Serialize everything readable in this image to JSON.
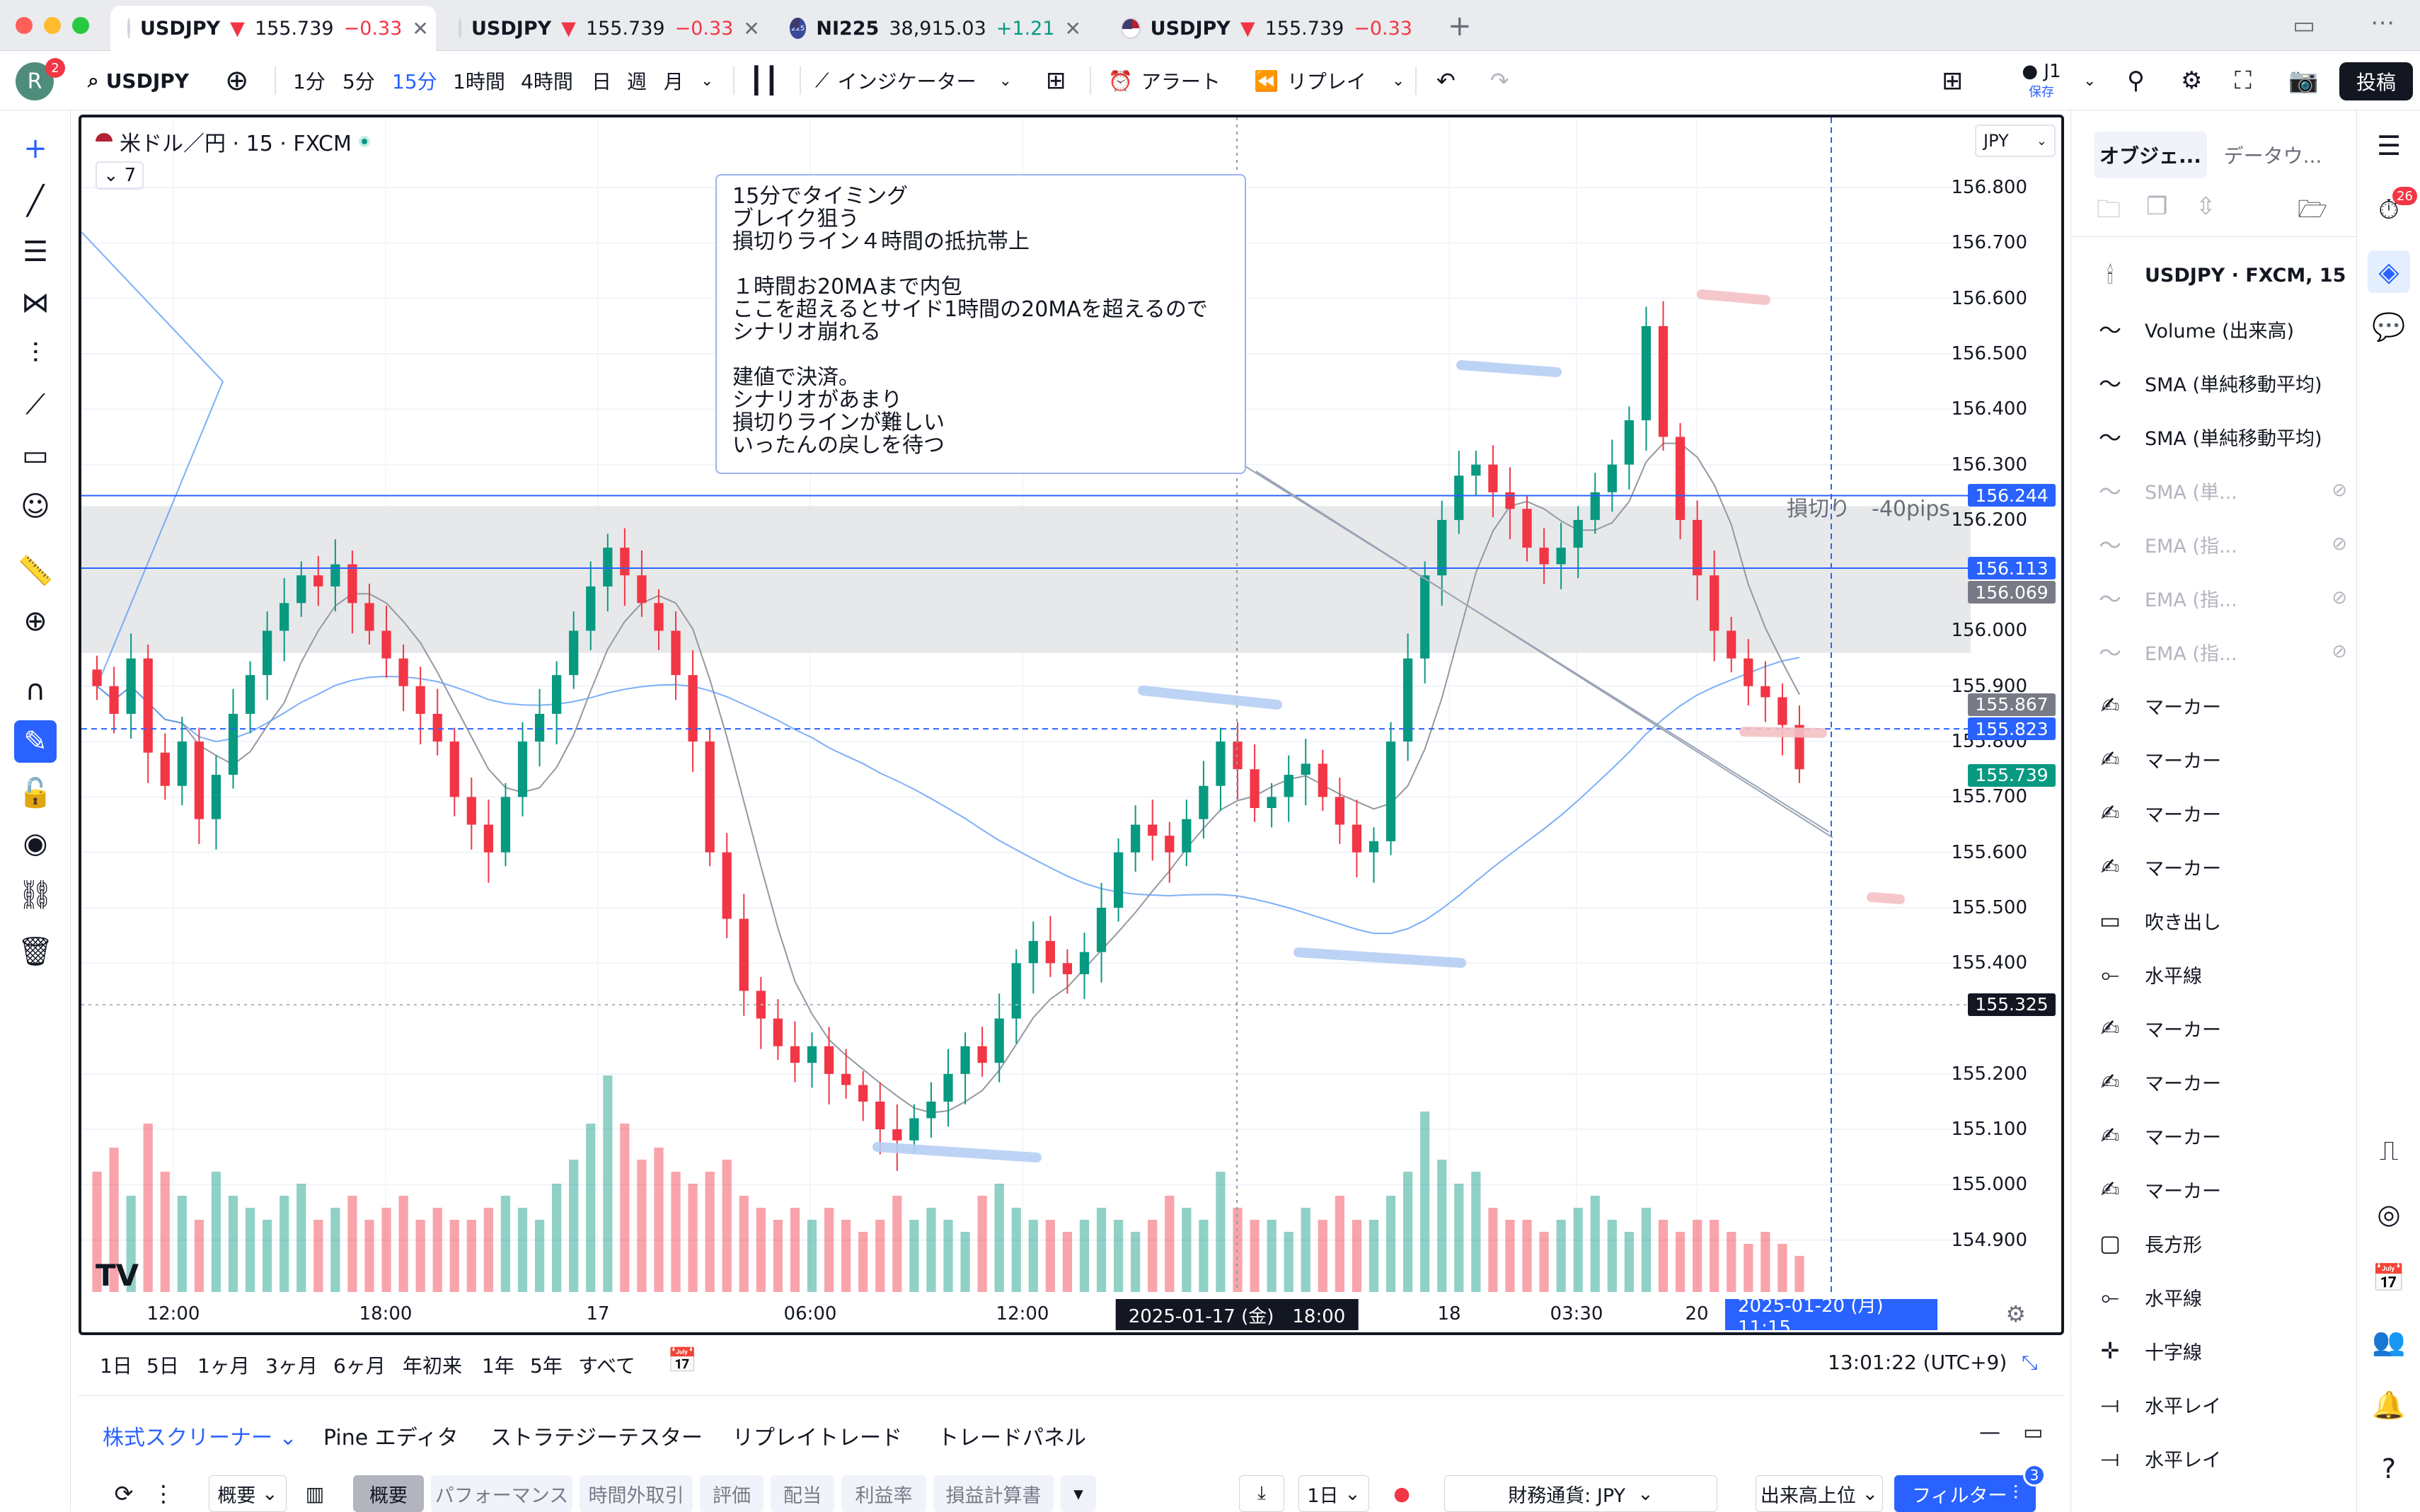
{
  "tabs": [
    {
      "symbol": "USDJPY",
      "arrow": "▼",
      "price": "155.739",
      "change": "−0.33",
      "dir": "down",
      "active": true
    },
    {
      "symbol": "USDJPY",
      "arrow": "▼",
      "price": "155.739",
      "change": "−0.33",
      "dir": "down",
      "active": false
    },
    {
      "symbol": "NI225",
      "arrow": "",
      "price": "38,915.03",
      "change": "+1.21",
      "dir": "up",
      "active": false,
      "badge": "225"
    },
    {
      "symbol": "USDJPY",
      "arrow": "▼",
      "price": "155.739",
      "change": "−0.33",
      "dir": "down",
      "active": false
    }
  ],
  "toolbar": {
    "avatar": "R",
    "avatar_badge": "2",
    "symbol": "USDJPY",
    "intervals": [
      "1分",
      "5分",
      "15分",
      "1時間",
      "4時間",
      "日",
      "週",
      "月"
    ],
    "active_interval": "15分",
    "indicators": "インジケーター",
    "alert": "アラート",
    "replay": "リプレイ",
    "layout_name": "J1",
    "save": "保存",
    "publish": "投稿"
  },
  "chart": {
    "title": "米ドル／円 · 15 · FXCM",
    "collapsed_count": "7",
    "currency": "JPY",
    "note": "15分でタイミング\nブレイク狙う\n損切りライン４時間の抵抗帯上\n\n１時間お20MAまで内包\nここを超えるとサイド1時間の20MAを超えるので\nシナリオ崩れる\n\n建値で決済。\nシナリオがあまり\n損切りラインが難しい\nいったんの戻しを待つ",
    "stop_label": "損切り　-40pips",
    "price_labels": [
      {
        "value": "156.244",
        "color": "#2962ff"
      },
      {
        "value": "156.113",
        "color": "#2962ff"
      },
      {
        "value": "156.069",
        "color": "#787b86"
      },
      {
        "value": "155.867",
        "color": "#787b86"
      },
      {
        "value": "155.823",
        "color": "#2962ff"
      },
      {
        "value": "155.739",
        "color": "#089981"
      },
      {
        "value": "155.325",
        "color": "#131722"
      }
    ],
    "time_labels": {
      "crosshair_a": "2025-01-17 (金)　18:00",
      "crosshair_b": "2025-01-20 (月)　11:15"
    }
  },
  "chart_data": {
    "type": "candlestick",
    "symbol": "USDJPY",
    "y_ticks": [
      "156.800",
      "156.700",
      "156.600",
      "156.500",
      "156.400",
      "156.300",
      "156.200",
      "156.000",
      "155.900",
      "155.800",
      "155.700",
      "155.600",
      "155.500",
      "155.400",
      "155.200",
      "155.100",
      "155.000",
      "154.900"
    ],
    "x_ticks": [
      "12:00",
      "18:00",
      "17",
      "06:00",
      "12:00",
      "18",
      "03:30",
      "20"
    ],
    "ylim": [
      154.8,
      156.85
    ],
    "close_path": [
      155.9,
      155.85,
      155.95,
      155.78,
      155.72,
      155.8,
      155.66,
      155.74,
      155.85,
      155.92,
      156.0,
      156.05,
      156.1,
      156.08,
      156.12,
      156.05,
      156.0,
      155.95,
      155.9,
      155.85,
      155.8,
      155.7,
      155.65,
      155.6,
      155.7,
      155.8,
      155.85,
      155.92,
      156.0,
      156.08,
      156.15,
      156.1,
      156.05,
      156.0,
      155.92,
      155.8,
      155.6,
      155.48,
      155.35,
      155.3,
      155.25,
      155.22,
      155.25,
      155.2,
      155.18,
      155.15,
      155.1,
      155.08,
      155.12,
      155.15,
      155.2,
      155.25,
      155.22,
      155.3,
      155.4,
      155.44,
      155.4,
      155.38,
      155.42,
      155.5,
      155.6,
      155.65,
      155.63,
      155.6,
      155.66,
      155.72,
      155.8,
      155.75,
      155.68,
      155.7,
      155.74,
      155.76,
      155.7,
      155.65,
      155.6,
      155.62,
      155.8,
      155.95,
      156.1,
      156.2,
      156.28,
      156.3,
      156.25,
      156.22,
      156.15,
      156.12,
      156.15,
      156.2,
      156.25,
      156.3,
      156.38,
      156.55,
      156.35,
      156.2,
      156.1,
      156.0,
      155.95,
      155.9,
      155.88,
      155.83,
      155.75
    ],
    "volume": [
      0.5,
      0.6,
      0.4,
      0.7,
      0.5,
      0.4,
      0.3,
      0.5,
      0.4,
      0.35,
      0.3,
      0.4,
      0.45,
      0.3,
      0.35,
      0.4,
      0.3,
      0.35,
      0.4,
      0.3,
      0.35,
      0.3,
      0.3,
      0.35,
      0.4,
      0.35,
      0.3,
      0.45,
      0.55,
      0.7,
      0.9,
      0.7,
      0.55,
      0.6,
      0.5,
      0.45,
      0.5,
      0.55,
      0.4,
      0.35,
      0.3,
      0.35,
      0.3,
      0.35,
      0.3,
      0.25,
      0.3,
      0.4,
      0.3,
      0.35,
      0.3,
      0.25,
      0.4,
      0.45,
      0.35,
      0.3,
      0.3,
      0.25,
      0.3,
      0.35,
      0.3,
      0.25,
      0.3,
      0.4,
      0.35,
      0.3,
      0.5,
      0.35,
      0.3,
      0.3,
      0.25,
      0.35,
      0.3,
      0.4,
      0.3,
      0.3,
      0.4,
      0.5,
      0.75,
      0.55,
      0.45,
      0.5,
      0.35,
      0.3,
      0.3,
      0.25,
      0.3,
      0.35,
      0.4,
      0.3,
      0.25,
      0.35,
      0.3,
      0.25,
      0.3,
      0.3,
      0.25,
      0.2,
      0.25,
      0.2,
      0.15
    ]
  },
  "range_bar": {
    "ranges": [
      "1日",
      "5日",
      "1ヶ月",
      "3ヶ月",
      "6ヶ月",
      "年初来",
      "1年",
      "5年",
      "すべて"
    ],
    "clock": "13:01:22 (UTC+9)"
  },
  "bottom_panel": {
    "tabs": [
      "株式スクリーナー",
      "Pine エディタ",
      "ストラテジーテスター",
      "リプレイトレード",
      "トレードパネル"
    ],
    "filters": [
      "概要",
      "概要",
      "パフォーマンス",
      "時間外取引",
      "評価",
      "配当",
      "利益率",
      "損益計算書"
    ],
    "interval": "1日",
    "currency_filter": "財務通貨: JPY",
    "sort": "出来高上位",
    "filter_btn": "フィルター",
    "filter_count": "3"
  },
  "object_tree": {
    "tabs": [
      "オブジェ...",
      "データウ..."
    ],
    "items": [
      {
        "label": "USDJPY · FXCM, 15",
        "icon": "candle-icon",
        "bold": true,
        "hidden": false
      },
      {
        "label": "Volume (出来高)",
        "icon": "indicator-icon",
        "hidden": false
      },
      {
        "label": "SMA (単純移動平均)",
        "icon": "indicator-icon",
        "hidden": false
      },
      {
        "label": "SMA (単純移動平均)",
        "icon": "indicator-icon",
        "hidden": false
      },
      {
        "label": "SMA (単...",
        "icon": "indicator-icon",
        "hidden": true
      },
      {
        "label": "EMA (指...",
        "icon": "indicator-icon",
        "hidden": true
      },
      {
        "label": "EMA (指...",
        "icon": "indicator-icon",
        "hidden": true
      },
      {
        "label": "EMA (指...",
        "icon": "indicator-icon",
        "hidden": true
      },
      {
        "label": "マーカー",
        "icon": "marker-icon",
        "hidden": false
      },
      {
        "label": "マーカー",
        "icon": "marker-icon",
        "hidden": false
      },
      {
        "label": "マーカー",
        "icon": "marker-icon",
        "hidden": false
      },
      {
        "label": "マーカー",
        "icon": "marker-icon",
        "hidden": false
      },
      {
        "label": "吹き出し",
        "icon": "callout-icon",
        "hidden": false
      },
      {
        "label": "水平線",
        "icon": "hline-icon",
        "hidden": false
      },
      {
        "label": "マーカー",
        "icon": "marker-icon",
        "hidden": false
      },
      {
        "label": "マーカー",
        "icon": "marker-icon",
        "hidden": false
      },
      {
        "label": "マーカー",
        "icon": "marker-icon",
        "hidden": false
      },
      {
        "label": "マーカー",
        "icon": "marker-icon",
        "hidden": false
      },
      {
        "label": "長方形",
        "icon": "rectangle-icon",
        "hidden": false
      },
      {
        "label": "水平線",
        "icon": "hline-icon",
        "hidden": false
      },
      {
        "label": "十字線",
        "icon": "cross-icon",
        "hidden": false
      },
      {
        "label": "水平レイ",
        "icon": "hray-icon",
        "hidden": false
      },
      {
        "label": "水平レイ",
        "icon": "hray-icon",
        "hidden": false
      }
    ]
  },
  "right_bar": {
    "alerts_badge": "26"
  },
  "colors": {
    "up": "#089981",
    "down": "#f23645",
    "accent": "#2962ff"
  }
}
